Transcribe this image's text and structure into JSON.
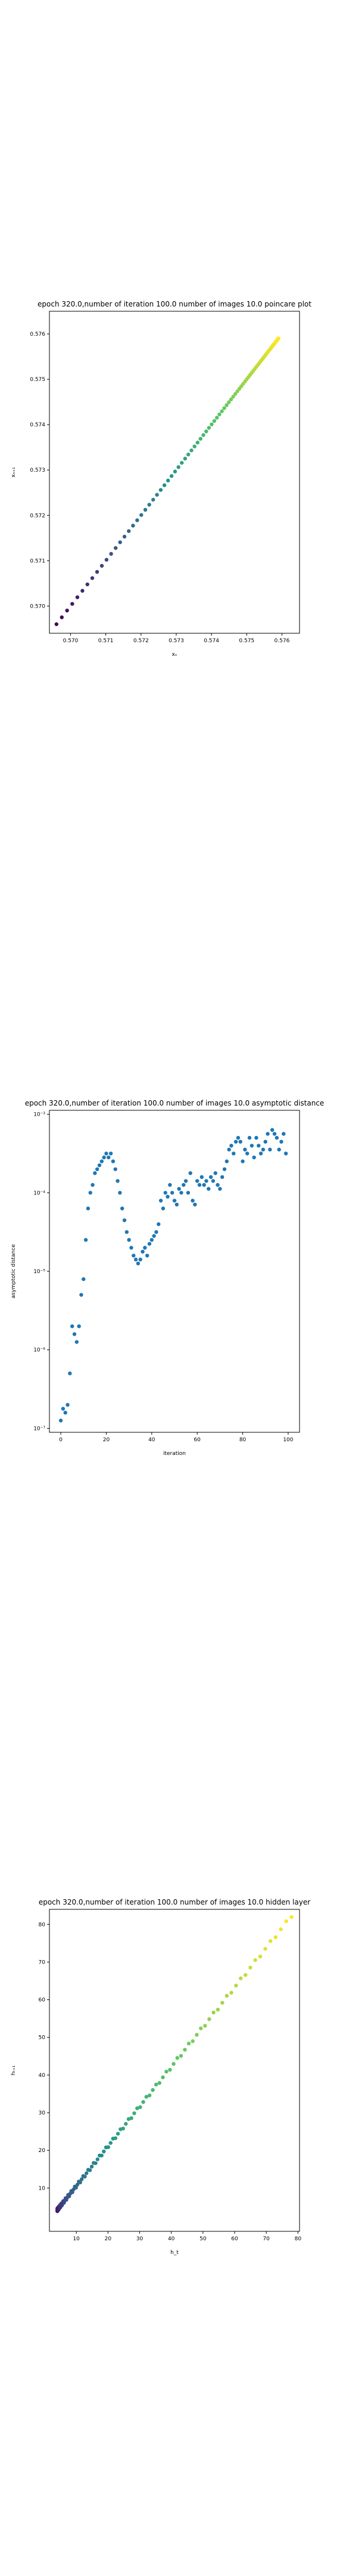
{
  "chart_data": [
    {
      "type": "scatter",
      "title": "epoch 320.0,number of iteration 100.0 number of images 10.0 poincare plot",
      "xlabel": "xₙ",
      "ylabel": "xₙ₊₁",
      "xlim": [
        0.5694,
        0.5765
      ],
      "ylim": [
        0.5694,
        0.5765
      ],
      "xticks": [
        0.57,
        0.571,
        0.572,
        0.573,
        0.574,
        0.575,
        0.576
      ],
      "yticks": [
        0.57,
        0.571,
        0.572,
        0.573,
        0.574,
        0.575,
        0.576
      ],
      "xtick_labels": [
        "0.570",
        "0.571",
        "0.572",
        "0.573",
        "0.574",
        "0.575",
        "0.576"
      ],
      "ytick_labels": [
        "0.570",
        "0.571",
        "0.572",
        "0.573",
        "0.574",
        "0.575",
        "0.576"
      ],
      "colormap": "viridis",
      "grid": false,
      "x_range": [
        0.5696,
        0.5759
      ],
      "num_points": 100
    },
    {
      "type": "scatter",
      "title": "epoch 320.0,number of iteration 100.0  number of images 10.0 asymptotic distance",
      "xlabel": "iteration",
      "ylabel": "asymptotic distance",
      "xlim": [
        -5,
        105
      ],
      "ylim_log10": [
        -7.05,
        -2.95
      ],
      "yscale": "log",
      "xticks": [
        0,
        20,
        40,
        60,
        80,
        100
      ],
      "xtick_labels": [
        "0",
        "20",
        "40",
        "60",
        "80",
        "100"
      ],
      "ytick_exponents": [
        -7,
        -6,
        -5,
        -4,
        -3
      ],
      "ytick_labels": [
        "10⁻⁷",
        "10⁻⁶",
        "10⁻⁵",
        "10⁻⁴",
        "10⁻³"
      ],
      "color": "#1f77b4",
      "grid": false,
      "x": [
        0,
        1,
        2,
        3,
        4,
        5,
        6,
        7,
        8,
        9,
        10,
        11,
        12,
        13,
        14,
        15,
        16,
        17,
        18,
        19,
        20,
        21,
        22,
        23,
        24,
        25,
        26,
        27,
        28,
        29,
        30,
        31,
        32,
        33,
        34,
        35,
        36,
        37,
        38,
        39,
        40,
        41,
        42,
        43,
        44,
        45,
        46,
        47,
        48,
        49,
        50,
        51,
        52,
        53,
        54,
        55,
        56,
        57,
        58,
        59,
        60,
        61,
        62,
        63,
        64,
        65,
        66,
        67,
        68,
        69,
        70,
        71,
        72,
        73,
        74,
        75,
        76,
        77,
        78,
        79,
        80,
        81,
        82,
        83,
        84,
        85,
        86,
        87,
        88,
        89,
        90,
        91,
        92,
        93,
        94,
        95,
        96,
        97,
        98,
        99
      ],
      "log10_y": [
        -6.9,
        -6.75,
        -6.8,
        -6.7,
        -6.3,
        -5.7,
        -5.8,
        -5.9,
        -5.7,
        -5.3,
        -5.1,
        -4.6,
        -4.2,
        -4.0,
        -3.9,
        -3.75,
        -3.7,
        -3.65,
        -3.6,
        -3.55,
        -3.5,
        -3.55,
        -3.5,
        -3.6,
        -3.7,
        -3.85,
        -4.0,
        -4.2,
        -4.35,
        -4.5,
        -4.6,
        -4.7,
        -4.8,
        -4.85,
        -4.9,
        -4.85,
        -4.75,
        -4.7,
        -4.8,
        -4.65,
        -4.6,
        -4.55,
        -4.5,
        -4.4,
        -4.1,
        -4.2,
        -4.0,
        -4.05,
        -3.9,
        -4.0,
        -4.1,
        -4.15,
        -3.95,
        -4.0,
        -3.9,
        -3.85,
        -4.0,
        -3.75,
        -4.1,
        -4.15,
        -3.85,
        -3.9,
        -3.8,
        -3.9,
        -3.85,
        -3.95,
        -3.8,
        -3.85,
        -3.75,
        -3.9,
        -3.95,
        -3.8,
        -3.7,
        -3.6,
        -3.45,
        -3.4,
        -3.5,
        -3.35,
        -3.3,
        -3.35,
        -3.6,
        -3.45,
        -3.5,
        -3.3,
        -3.4,
        -3.55,
        -3.3,
        -3.4,
        -3.5,
        -3.45,
        -3.35,
        -3.25,
        -3.45,
        -3.2,
        -3.25,
        -3.3,
        -3.45,
        -3.35,
        -3.25,
        -3.5
      ]
    },
    {
      "type": "scatter",
      "title": "epoch 320.0,number of iteration 100.0  number of images 10.0 hidden layer",
      "xlabel": "h_t",
      "ylabel": "hₜ₊₁",
      "xlim": [
        1.5,
        80.5
      ],
      "ylim": [
        -1.5,
        84
      ],
      "xticks": [
        10,
        20,
        30,
        40,
        50,
        60,
        70,
        80
      ],
      "yticks": [
        10,
        20,
        30,
        40,
        50,
        60,
        70,
        80
      ],
      "xtick_labels": [
        "10",
        "20",
        "30",
        "40",
        "50",
        "60",
        "70",
        "80"
      ],
      "ytick_labels": [
        "10",
        "20",
        "30",
        "40",
        "50",
        "60",
        "70",
        "80"
      ],
      "colormap": "viridis",
      "grid": false,
      "x_range": [
        4,
        78
      ],
      "num_points": 100
    }
  ]
}
